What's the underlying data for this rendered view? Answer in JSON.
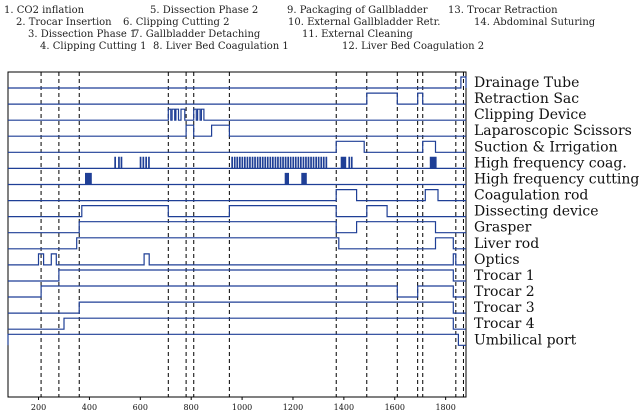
{
  "phases": [
    "1. CO2 inflation",
    "2. Trocar Insertion",
    "3. Dissection Phase 1",
    "4. Clipping Cutting 1",
    "5. Dissection Phase 2",
    "6. Clipping Cutting 2",
    "7. Gallbladder Detaching",
    "8. Liver Bed Coagulation 1",
    "9. Packaging of Gallbladder",
    "10. External Gallbladder Retr.",
    "11. External Cleaning",
    "12. Liver Bed Coagulation 2",
    "13. Trocar Retraction",
    "14. Abdominal Suturing"
  ],
  "chart_data": {
    "type": "line",
    "xlim": [
      80,
      1880
    ],
    "x_ticks": [
      "200",
      "400",
      "600",
      "800",
      "1000",
      "1200",
      "1400",
      "1600",
      "1800"
    ],
    "x_tick_values": [
      200,
      400,
      600,
      800,
      1000,
      1200,
      1400,
      1600,
      1800
    ],
    "phase_boundaries": [
      210,
      280,
      360,
      710,
      780,
      810,
      950,
      1370,
      1490,
      1610,
      1690,
      1710,
      1840,
      1870
    ],
    "series": [
      {
        "name": "Drainage Tube",
        "on": [
          [
            1860,
            1880
          ]
        ]
      },
      {
        "name": "Retraction Sac",
        "on": [
          [
            1490,
            1610
          ],
          [
            1690,
            1710
          ]
        ]
      },
      {
        "name": "Clipping Device",
        "on": [
          [
            710,
            720
          ],
          [
            725,
            735
          ],
          [
            740,
            750
          ],
          [
            760,
            775
          ],
          [
            810,
            820
          ],
          [
            825,
            835
          ],
          [
            840,
            850
          ]
        ]
      },
      {
        "name": "Laparoscopic Scissors",
        "on": [
          [
            780,
            810
          ],
          [
            880,
            950
          ]
        ]
      },
      {
        "name": "Suction & Irrigation",
        "on": [
          [
            1370,
            1480
          ],
          [
            1710,
            1760
          ]
        ]
      },
      {
        "name": "High frequency coag.",
        "on": [
          [
            500,
            502
          ],
          [
            515,
            517
          ],
          [
            525,
            527
          ],
          [
            600,
            602
          ],
          [
            611,
            613
          ],
          [
            622,
            624
          ],
          [
            633,
            635
          ],
          [
            960,
            962
          ],
          [
            970,
            972
          ],
          [
            980,
            982
          ],
          [
            990,
            992
          ],
          [
            1000,
            1002
          ],
          [
            1010,
            1012
          ],
          [
            1020,
            1022
          ],
          [
            1030,
            1032
          ],
          [
            1040,
            1042
          ],
          [
            1050,
            1052
          ],
          [
            1060,
            1062
          ],
          [
            1070,
            1072
          ],
          [
            1080,
            1082
          ],
          [
            1090,
            1092
          ],
          [
            1100,
            1102
          ],
          [
            1110,
            1112
          ],
          [
            1120,
            1122
          ],
          [
            1130,
            1132
          ],
          [
            1140,
            1142
          ],
          [
            1150,
            1152
          ],
          [
            1160,
            1162
          ],
          [
            1170,
            1172
          ],
          [
            1180,
            1182
          ],
          [
            1190,
            1192
          ],
          [
            1200,
            1202
          ],
          [
            1210,
            1212
          ],
          [
            1220,
            1222
          ],
          [
            1230,
            1232
          ],
          [
            1240,
            1242
          ],
          [
            1250,
            1252
          ],
          [
            1260,
            1262
          ],
          [
            1270,
            1272
          ],
          [
            1280,
            1282
          ],
          [
            1290,
            1292
          ],
          [
            1300,
            1302
          ],
          [
            1310,
            1312
          ],
          [
            1320,
            1322
          ],
          [
            1330,
            1332
          ],
          [
            1390,
            1392
          ],
          [
            1395,
            1397
          ],
          [
            1400,
            1402
          ],
          [
            1405,
            1407
          ],
          [
            1420,
            1422
          ],
          [
            1430,
            1432
          ],
          [
            1740,
            1742
          ],
          [
            1745,
            1747
          ],
          [
            1750,
            1752
          ],
          [
            1755,
            1757
          ],
          [
            1760,
            1762
          ]
        ]
      },
      {
        "name": "High frequency cutting",
        "on": [
          [
            385,
            387
          ],
          [
            390,
            392
          ],
          [
            395,
            397
          ],
          [
            400,
            402
          ],
          [
            405,
            407
          ],
          [
            1170,
            1172
          ],
          [
            1175,
            1177
          ],
          [
            1180,
            1182
          ],
          [
            1235,
            1237
          ],
          [
            1240,
            1242
          ],
          [
            1245,
            1247
          ],
          [
            1250,
            1252
          ]
        ]
      },
      {
        "name": "Coagulation rod",
        "on": [
          [
            1370,
            1450
          ],
          [
            1720,
            1770
          ]
        ]
      },
      {
        "name": "Dissecting device",
        "on": [
          [
            370,
            710
          ],
          [
            950,
            1370
          ],
          [
            1490,
            1570
          ]
        ]
      },
      {
        "name": "Grasper",
        "on": [
          [
            360,
            1370
          ],
          [
            1450,
            1760
          ]
        ]
      },
      {
        "name": "Liver rod",
        "on": [
          [
            350,
            1380
          ],
          [
            1760,
            1830
          ]
        ]
      },
      {
        "name": "Optics",
        "on": [
          [
            200,
            220
          ],
          [
            250,
            270
          ],
          [
            615,
            635
          ],
          [
            1830,
            1840
          ]
        ]
      },
      {
        "name": "Trocar 1",
        "on": [
          [
            280,
            1830
          ]
        ]
      },
      {
        "name": "Trocar 2",
        "on": [
          [
            210,
            1610
          ],
          [
            1690,
            1830
          ]
        ]
      },
      {
        "name": "Trocar 3",
        "on": [
          [
            360,
            1830
          ]
        ]
      },
      {
        "name": "Trocar 4",
        "on": [
          [
            300,
            1830
          ]
        ]
      },
      {
        "name": "Umbilical port",
        "on": [
          [
            80,
            1850
          ]
        ]
      }
    ]
  }
}
